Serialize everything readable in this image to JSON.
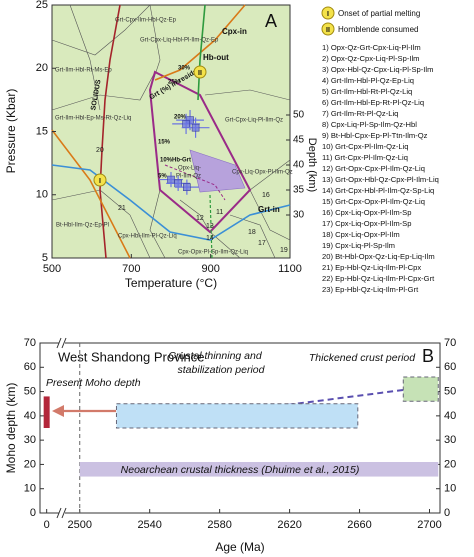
{
  "panel_a": {
    "type": "scatter",
    "label": "A",
    "x_label": "Temperature (°C)",
    "y_label": "Pressure (Kbar)",
    "y2_label": "Depth (km)",
    "xlim": [
      500,
      1100
    ],
    "xticks": [
      500,
      700,
      900,
      1100
    ],
    "ylim": [
      5,
      25
    ],
    "yticks": [
      5,
      10,
      15,
      20,
      25
    ],
    "y2lim": [
      21.4,
      72
    ],
    "y2ticks": [
      30,
      35,
      40,
      45,
      50
    ],
    "boundary_labels": [
      "SOLIDUS",
      "Cpx-in",
      "Hb-out",
      "Grt-in"
    ],
    "annotation": "Grt (%) in residue",
    "isopleth_labels": [
      "30%",
      "25%",
      "20%",
      "15%",
      "10%Hb-Grt",
      "5%"
    ],
    "field_labels": [
      "Grt-Cpx-Ilm-Hbl-Qz-Ep",
      "Grt-Ilm-Hbl-Rt-Ms-Ep",
      "Grt-Ilm-Hbl-Ep-Ms-Rt-Qz-Liq",
      "Grt-Cpx-Liq-Hbl-Pl-Ilm-Qz-Ep",
      "Grt-Cpx-Liq-Pl-Ilm-Qz",
      "Opx-Liq-",
      "Pl-Ilm-Qz",
      "Cpx-Liq-Opx-Pl-Ilm-Qz",
      "Bt-Hbl-Ilm-Qz-Ep-Pl",
      "Cpx-Hbl-Ilm-Pl-Qz-Liq",
      "Cpx-Opx-Pl-Sp-Ilm-Qz-Liq"
    ],
    "field_numbers": [
      "11",
      "12",
      "13",
      "14",
      "16",
      "17",
      "18",
      "19",
      "20",
      "21"
    ],
    "markers": [
      {
        "symbol": "I",
        "label": "Onset of partial melting"
      },
      {
        "symbol": "II",
        "label": "Hornblende consumed"
      }
    ],
    "assemblages": [
      "1) Opx-Qz-Grt-Cpx-Liq-Pl-Ilm",
      "2) Opx-Qz-Cpx-Liq-Pl-Sp-Ilm",
      "3) Opx-Hbl-Qz-Cpx-Liq-Pl-Sp-Ilm",
      "4) Grt-Ilm-Hbl-Pl-Qz-Ep-Liq",
      "5) Grt-Ilm-Hbl-Rt-Pl-Qz-Liq",
      "6) Grt-Ilm-Hbl-Ep-Rt-Pl-Qz-Liq",
      "7) Grt-Ilm-Rt-Pl-Qz-Liq",
      "8) Cpx-Liq-Pl-Sp-Ilm-Qz-Hbl",
      "9) Bt-Hbl-Cpx-Ep-Pl-Ttn-Ilm-Qz",
      "10) Grt-Cpx-Pl-Ilm-Qz-Liq",
      "11) Grt-Cpx-Pl-Ilm-Qz-Liq",
      "12) Grt-Opx-Cpx-Pl-Ilm-Qz-Liq",
      "13) Grt-Opx-Hbl-Qz-Cpx-Pl-Ilm-Liq",
      "14) Grt-Cpx-Hbl-Pl-Ilm-Qz-Sp-Liq",
      "15) Grt-Cpx-Opx-Pl-Ilm-Qz-Liq",
      "16) Cpx-Liq-Opx-Pl-Ilm-Sp",
      "17) Cpx-Liq-Opx-Pl-Ilm-Sp",
      "18) Cpx-Liq-Opx-Pl-Ilm",
      "19) Cpx-Liq-Pl-Sp-Ilm",
      "20) Bt-Hbl-Opx-Qz-Liq-Ep-Liq-Ilm",
      "21) Ep-Hbl-Qz-Liq-Ilm-Pl-Cpx",
      "22) Ep-Hbl-Qz-Liq-Ilm-Pl-Cpx-Grt",
      "23) Ep-Hbl-Qz-Liq-Ilm-Pl-Grt"
    ],
    "points": {
      "color": "#6b74e2",
      "x": [
        848,
        838,
        862,
        800,
        818,
        840
      ],
      "y": [
        15.9,
        15.6,
        15.3,
        11.2,
        10.9,
        10.6
      ],
      "xerr": [
        35,
        35,
        35,
        30,
        30,
        30
      ],
      "yerr": [
        0.8,
        0.8,
        0.8,
        0.6,
        0.6,
        0.6
      ]
    }
  },
  "panel_b": {
    "type": "range",
    "label": "B",
    "title": "West Shandong Province",
    "x_label": "Age (Ma)",
    "y_label": "Moho depth (km)",
    "xlim_break": [
      -1,
      2
    ],
    "xlim": [
      2491,
      2706
    ],
    "xticks": [
      0,
      2500,
      2540,
      2580,
      2620,
      2660,
      2700
    ],
    "ylim": [
      0,
      70
    ],
    "yticks": [
      0,
      10,
      20,
      30,
      40,
      50,
      60,
      70
    ],
    "ranges": [
      {
        "label": [
          "Neoarchean crustal thickness (Dhuime et al., 2015)"
        ],
        "color": "#cbc1e2",
        "age": [
          2500,
          2705
        ],
        "depth": [
          15,
          21
        ]
      },
      {
        "label": [
          "Present Moho depth"
        ],
        "color": "#b3263a",
        "age": 0,
        "depth": [
          35,
          48
        ]
      },
      {
        "label": [
          "Crustal thinning and",
          "stabilization period"
        ],
        "color": "#bfe0f6",
        "age": [
          2521,
          2659
        ],
        "depth": [
          35,
          45
        ]
      },
      {
        "label": [
          "Thickened crust period"
        ],
        "color": "#c6e2b6",
        "age": [
          2685,
          2705
        ],
        "depth": [
          46,
          56
        ]
      }
    ]
  }
}
